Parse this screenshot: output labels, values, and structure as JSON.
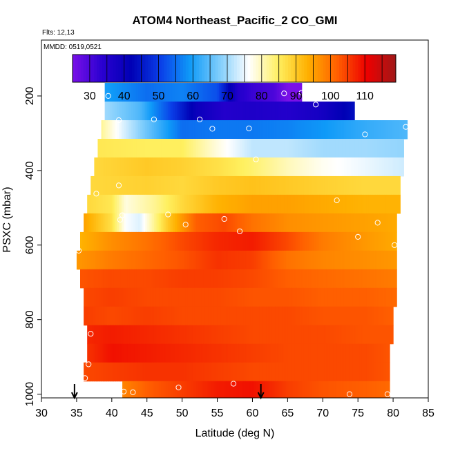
{
  "chart_data": {
    "type": "heatmap",
    "title": "ATOM4 Northeast_Pacific_2 CO_GMI",
    "subtitle_flights": "Flts: 12,13",
    "subtitle_dates": "MMDD: 0519,0521",
    "xlabel": "Latitude (deg N)",
    "ylabel": "PSXC (mbar)",
    "xlim": [
      30,
      85
    ],
    "ylim": [
      1010,
      50
    ],
    "x_ticks": [
      "30",
      "35",
      "40",
      "45",
      "50",
      "55",
      "60",
      "65",
      "70",
      "75",
      "80",
      "85"
    ],
    "y_ticks": [
      "200",
      "400",
      "600",
      "800",
      "1000"
    ],
    "colorbar": {
      "min": 25,
      "max": 119,
      "tick_labels": [
        "30",
        "40",
        "50",
        "60",
        "70",
        "80",
        "90",
        "100",
        "110"
      ],
      "colors": [
        "#7a10e8",
        "#2a00d0",
        "#0000b5",
        "#0a3fe8",
        "#0f9af8",
        "#7fcdfc",
        "#ffffff",
        "#fff060",
        "#ffb000",
        "#ff6000",
        "#ee0000",
        "#a01818"
      ]
    },
    "arrows_latitude": [
      34.7,
      61.2
    ],
    "rows": [
      {
        "pressure": 190,
        "lat_min": 39,
        "lat_max": 67,
        "values": [
          [
            39,
            60
          ],
          [
            45,
            55
          ],
          [
            50,
            57
          ],
          [
            55,
            52
          ],
          [
            58,
            35
          ],
          [
            60,
            32
          ],
          [
            63,
            30
          ],
          [
            65,
            25
          ],
          [
            67,
            25
          ]
        ]
      },
      {
        "pressure": 240,
        "lat_min": 39,
        "lat_max": 74.5,
        "values": [
          [
            39,
            70
          ],
          [
            44,
            64
          ],
          [
            48,
            52
          ],
          [
            52,
            40
          ],
          [
            56,
            35
          ],
          [
            60,
            36
          ],
          [
            65,
            35
          ],
          [
            70,
            38
          ],
          [
            74.5,
            44
          ]
        ]
      },
      {
        "pressure": 290,
        "lat_min": 38.5,
        "lat_max": 82,
        "values": [
          [
            38.5,
            82
          ],
          [
            42,
            73
          ],
          [
            46,
            64
          ],
          [
            50,
            55
          ],
          [
            55,
            56
          ],
          [
            60,
            56
          ],
          [
            65,
            57
          ],
          [
            70,
            59
          ],
          [
            76,
            62
          ],
          [
            82,
            64
          ]
        ]
      },
      {
        "pressure": 340,
        "lat_min": 38,
        "lat_max": 81.5,
        "values": [
          [
            38,
            86
          ],
          [
            45,
            85
          ],
          [
            50,
            85
          ],
          [
            55,
            78
          ],
          [
            60,
            72
          ],
          [
            65,
            72
          ],
          [
            70,
            70
          ],
          [
            76,
            70
          ],
          [
            81.5,
            69
          ]
        ]
      },
      {
        "pressure": 390,
        "lat_min": 37.5,
        "lat_max": 81.5,
        "values": [
          [
            37.5,
            88
          ],
          [
            45,
            90
          ],
          [
            50,
            89
          ],
          [
            55,
            87
          ],
          [
            60,
            84
          ],
          [
            65,
            80
          ],
          [
            70,
            77
          ],
          [
            76,
            75
          ],
          [
            81.5,
            73
          ]
        ]
      },
      {
        "pressure": 440,
        "lat_min": 37,
        "lat_max": 81,
        "values": [
          [
            37,
            88
          ],
          [
            45,
            89
          ],
          [
            50,
            88
          ],
          [
            55,
            90
          ],
          [
            60,
            91
          ],
          [
            65,
            90
          ],
          [
            70,
            89
          ],
          [
            76,
            88
          ],
          [
            81,
            88
          ]
        ]
      },
      {
        "pressure": 490,
        "lat_min": 36.5,
        "lat_max": 81,
        "values": [
          [
            36.5,
            88
          ],
          [
            40,
            86
          ],
          [
            42,
            78
          ],
          [
            46,
            82
          ],
          [
            50,
            88
          ],
          [
            55,
            93
          ],
          [
            60,
            95
          ],
          [
            65,
            95
          ],
          [
            70,
            94
          ],
          [
            76,
            93
          ],
          [
            81,
            93
          ]
        ]
      },
      {
        "pressure": 540,
        "lat_min": 36,
        "lat_max": 80.5,
        "values": [
          [
            36,
            95
          ],
          [
            40,
            87
          ],
          [
            42,
            76
          ],
          [
            44,
            74
          ],
          [
            48,
            90
          ],
          [
            52,
            102
          ],
          [
            56,
            104
          ],
          [
            60,
            100
          ],
          [
            65,
            97
          ],
          [
            70,
            96
          ],
          [
            76,
            95
          ],
          [
            80.5,
            94
          ]
        ]
      },
      {
        "pressure": 590,
        "lat_min": 35.5,
        "lat_max": 80.5,
        "values": [
          [
            35.5,
            93
          ],
          [
            40,
            97
          ],
          [
            45,
            100
          ],
          [
            50,
            104
          ],
          [
            55,
            107
          ],
          [
            60,
            108
          ],
          [
            65,
            104
          ],
          [
            70,
            99
          ],
          [
            76,
            96
          ],
          [
            80.5,
            94
          ]
        ]
      },
      {
        "pressure": 640,
        "lat_min": 35,
        "lat_max": 80.5,
        "values": [
          [
            35,
            96
          ],
          [
            40,
            99
          ],
          [
            45,
            101
          ],
          [
            50,
            103
          ],
          [
            55,
            106
          ],
          [
            60,
            105
          ],
          [
            65,
            100
          ],
          [
            70,
            98
          ],
          [
            76,
            97
          ],
          [
            80.5,
            96
          ]
        ]
      },
      {
        "pressure": 690,
        "lat_min": 35.5,
        "lat_max": 80.5,
        "values": [
          [
            35.5,
            103
          ],
          [
            40,
            104
          ],
          [
            45,
            104
          ],
          [
            50,
            105
          ],
          [
            55,
            105
          ],
          [
            60,
            104
          ],
          [
            65,
            102
          ],
          [
            70,
            101
          ],
          [
            76,
            100
          ],
          [
            80.5,
            99
          ]
        ]
      },
      {
        "pressure": 740,
        "lat_min": 36,
        "lat_max": 80.5,
        "values": [
          [
            36,
            104
          ],
          [
            40,
            105
          ],
          [
            45,
            104
          ],
          [
            50,
            104
          ],
          [
            55,
            104
          ],
          [
            60,
            103
          ],
          [
            65,
            103
          ],
          [
            70,
            102
          ],
          [
            76,
            102
          ],
          [
            80.5,
            101
          ]
        ]
      },
      {
        "pressure": 790,
        "lat_min": 36,
        "lat_max": 80,
        "values": [
          [
            36,
            105
          ],
          [
            40,
            104
          ],
          [
            45,
            105
          ],
          [
            50,
            104
          ],
          [
            55,
            104
          ],
          [
            60,
            104
          ],
          [
            65,
            104
          ],
          [
            70,
            103
          ],
          [
            76,
            103
          ],
          [
            80,
            102
          ]
        ]
      },
      {
        "pressure": 840,
        "lat_min": 36.5,
        "lat_max": 80,
        "values": [
          [
            36.5,
            107
          ],
          [
            40,
            108
          ],
          [
            45,
            107
          ],
          [
            50,
            106
          ],
          [
            55,
            105
          ],
          [
            60,
            104
          ],
          [
            65,
            104
          ],
          [
            70,
            104
          ],
          [
            76,
            103
          ],
          [
            80,
            103
          ]
        ]
      },
      {
        "pressure": 890,
        "lat_min": 36.5,
        "lat_max": 79.5,
        "values": [
          [
            36.5,
            106
          ],
          [
            40,
            109
          ],
          [
            45,
            108
          ],
          [
            50,
            107
          ],
          [
            55,
            106
          ],
          [
            60,
            105
          ],
          [
            65,
            104
          ],
          [
            70,
            104
          ],
          [
            76,
            104
          ],
          [
            79.5,
            103
          ]
        ]
      },
      {
        "pressure": 940,
        "lat_min": 36,
        "lat_max": 79.5,
        "values": [
          [
            36,
            104
          ],
          [
            40,
            105
          ],
          [
            45,
            106
          ],
          [
            50,
            106
          ],
          [
            55,
            105
          ],
          [
            60,
            104
          ],
          [
            65,
            104
          ],
          [
            70,
            104
          ],
          [
            76,
            104
          ],
          [
            79.5,
            103
          ]
        ]
      },
      {
        "pressure": 990,
        "lat_min": 41.5,
        "lat_max": 79.5,
        "values": [
          [
            41.5,
            98
          ],
          [
            45,
            102
          ],
          [
            50,
            105
          ],
          [
            55,
            108
          ],
          [
            60,
            109
          ],
          [
            65,
            105
          ],
          [
            70,
            103
          ],
          [
            76,
            102
          ],
          [
            79.5,
            101
          ]
        ]
      }
    ],
    "observations": [
      {
        "lat": 39.5,
        "pressure": 200
      },
      {
        "lat": 64.5,
        "pressure": 193
      },
      {
        "lat": 67,
        "pressure": 191
      },
      {
        "lat": 69,
        "pressure": 223
      },
      {
        "lat": 41,
        "pressure": 265
      },
      {
        "lat": 46,
        "pressure": 263
      },
      {
        "lat": 52.5,
        "pressure": 263
      },
      {
        "lat": 54.3,
        "pressure": 288
      },
      {
        "lat": 59.5,
        "pressure": 287
      },
      {
        "lat": 76,
        "pressure": 303
      },
      {
        "lat": 81.8,
        "pressure": 283
      },
      {
        "lat": 60.5,
        "pressure": 370
      },
      {
        "lat": 41,
        "pressure": 440
      },
      {
        "lat": 37.8,
        "pressure": 462
      },
      {
        "lat": 72,
        "pressure": 480
      },
      {
        "lat": 41.5,
        "pressure": 520
      },
      {
        "lat": 48,
        "pressure": 518
      },
      {
        "lat": 41.2,
        "pressure": 532
      },
      {
        "lat": 50.5,
        "pressure": 545
      },
      {
        "lat": 56,
        "pressure": 530
      },
      {
        "lat": 58.2,
        "pressure": 563
      },
      {
        "lat": 77.8,
        "pressure": 540
      },
      {
        "lat": 75,
        "pressure": 578
      },
      {
        "lat": 35.3,
        "pressure": 615
      },
      {
        "lat": 80.2,
        "pressure": 600
      },
      {
        "lat": 37,
        "pressure": 838
      },
      {
        "lat": 36.7,
        "pressure": 920
      },
      {
        "lat": 36.2,
        "pressure": 957
      },
      {
        "lat": 57.3,
        "pressure": 972
      },
      {
        "lat": 49.5,
        "pressure": 982
      },
      {
        "lat": 41.7,
        "pressure": 993
      },
      {
        "lat": 43,
        "pressure": 995
      },
      {
        "lat": 73.8,
        "pressure": 1000
      },
      {
        "lat": 79.2,
        "pressure": 1000
      }
    ]
  }
}
